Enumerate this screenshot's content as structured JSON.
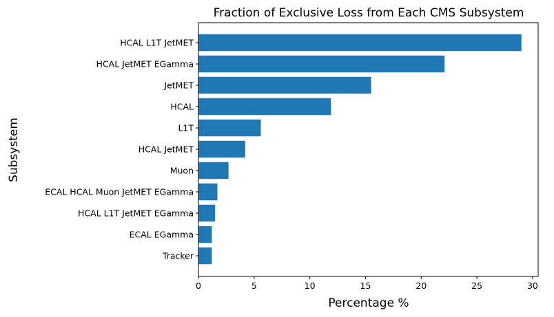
{
  "chart_data": {
    "type": "bar",
    "orientation": "horizontal",
    "title": "Fraction of Exclusive Loss from Each CMS Subsystem",
    "xlabel": "Percentage %",
    "ylabel": "Subsystem",
    "xlim": [
      0,
      30.5
    ],
    "xticks": [
      0,
      5,
      10,
      15,
      20,
      25,
      30
    ],
    "grid": false,
    "legend": "none",
    "bar_color": "#1f77b4",
    "categories": [
      "HCAL L1T JetMET",
      "HCAL JetMET EGamma",
      "JetMET",
      "HCAL",
      "L1T",
      "HCAL JetMET",
      "Muon",
      "ECAL HCAL Muon JetMET EGamma",
      "HCAL L1T JetMET EGamma",
      "ECAL EGamma",
      "Tracker"
    ],
    "values": [
      29.0,
      22.1,
      15.5,
      11.9,
      5.6,
      4.2,
      2.7,
      1.7,
      1.5,
      1.2,
      1.2
    ]
  }
}
